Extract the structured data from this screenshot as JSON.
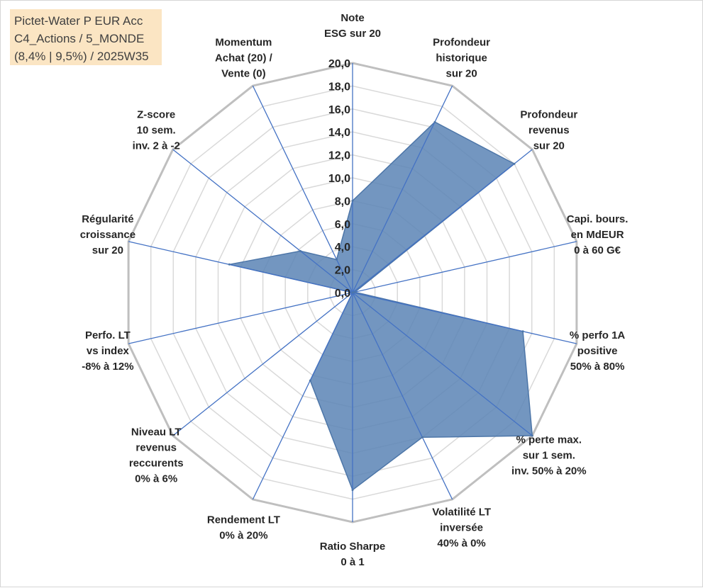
{
  "title": {
    "lines": [
      "Pictet-Water P EUR Acc",
      "C4_Actions / 5_MONDE",
      "(8,4% | 9,5%) / 2025W35"
    ]
  },
  "colors": {
    "fill": "#5b84b5",
    "stroke": "#4d76a8",
    "spokes": "#4472c4",
    "outer_grid": "#bfbfbf",
    "inner_grid": "#d9d9d9",
    "title_bg": "#fbe5c3"
  },
  "chart_data": {
    "type": "radar",
    "title": "",
    "rlim": [
      0,
      20
    ],
    "r_ticks": [
      "0,0",
      "2,0",
      "4,0",
      "6,0",
      "8,0",
      "10,0",
      "12,0",
      "14,0",
      "16,0",
      "18,0",
      "20,0"
    ],
    "grid": true,
    "legend": "none",
    "axes": [
      {
        "label": [
          "Note",
          "ESG sur 20"
        ],
        "value": 8.0
      },
      {
        "label": [
          "Profondeur",
          "historique",
          "sur 20"
        ],
        "value": 16.5
      },
      {
        "label": [
          "Profondeur",
          "revenus",
          "sur 20"
        ],
        "value": 18.0
      },
      {
        "label": [
          "Capi. bours.",
          "en MdEUR",
          "0 à 60 G€"
        ],
        "value": 0.2
      },
      {
        "label": [
          "% perfo 1A",
          "positive",
          "50% à 80%"
        ],
        "value": 15.2
      },
      {
        "label": [
          "% perte max.",
          "sur 1 sem.",
          "inv. 50% à 20%"
        ],
        "value": 20.0
      },
      {
        "label": [
          "Volatilité LT",
          "inversée",
          "40% à 0%"
        ],
        "value": 14.0
      },
      {
        "label": [
          "Ratio Sharpe",
          "0 à 1"
        ],
        "value": 17.2
      },
      {
        "label": [
          "Rendement LT",
          "0% à 20%"
        ],
        "value": 8.5
      },
      {
        "label": [
          "Niveau LT",
          "revenus",
          "reccurents",
          "0% à 6%"
        ],
        "value": 0.0
      },
      {
        "label": [
          "Perfo. LT",
          "vs index",
          "-8% à 12%"
        ],
        "value": 0.0
      },
      {
        "label": [
          "Régularité",
          "croissance",
          "sur 20"
        ],
        "value": 11.0
      },
      {
        "label": [
          "Z-score",
          "10 sem.",
          "inv. 2 à -2"
        ],
        "value": 5.8
      },
      {
        "label": [
          "Momentum",
          "Achat (20) /",
          "Vente (0)"
        ],
        "value": 3.2
      }
    ]
  }
}
